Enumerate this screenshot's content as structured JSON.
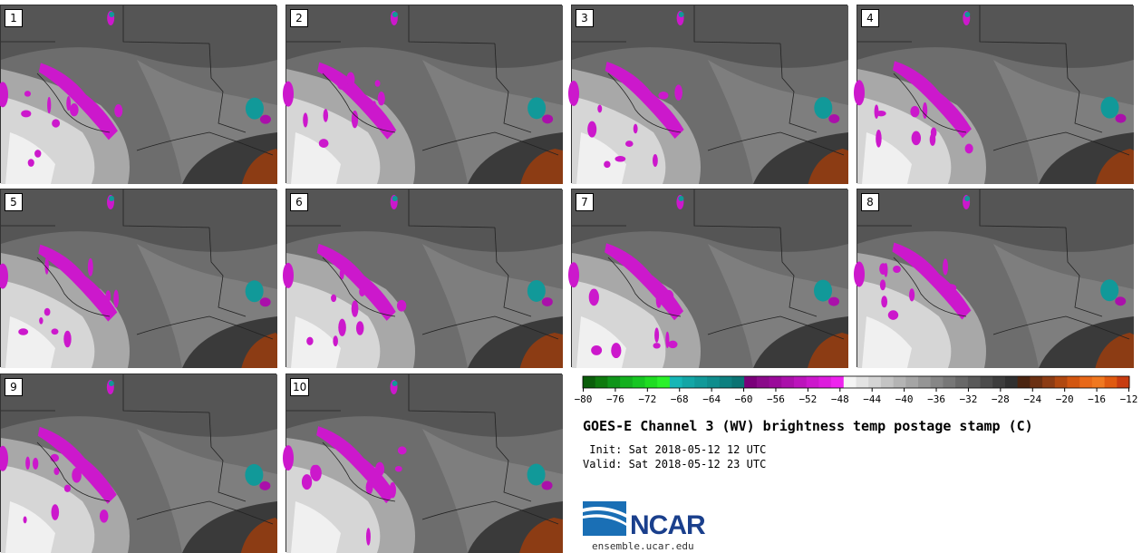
{
  "panels": [
    {
      "label": "1"
    },
    {
      "label": "2"
    },
    {
      "label": "3"
    },
    {
      "label": "4"
    },
    {
      "label": "5"
    },
    {
      "label": "6"
    },
    {
      "label": "7"
    },
    {
      "label": "8"
    },
    {
      "label": "9"
    },
    {
      "label": "10"
    }
  ],
  "colorbar": {
    "ticks": [
      "−80",
      "−76",
      "−72",
      "−68",
      "−64",
      "−60",
      "−56",
      "−52",
      "−48",
      "−44",
      "−40",
      "−36",
      "−32",
      "−28",
      "−24",
      "−20",
      "−16",
      "−12"
    ],
    "colors": [
      "#0b5e0b",
      "#0e7a0e",
      "#10951a",
      "#14b01f",
      "#17c622",
      "#1fdc22",
      "#2af02a",
      "#16b6b6",
      "#13a6a6",
      "#119999",
      "#0f8d8d",
      "#0d8080",
      "#0b7373",
      "#7a007a",
      "#8a0a8a",
      "#9a0a9a",
      "#aa10aa",
      "#bb14bb",
      "#cc18cc",
      "#dd1cdd",
      "#ee22ee",
      "#f4f4f4",
      "#e3e3e3",
      "#d4d4d4",
      "#c4c4c4",
      "#b4b4b4",
      "#a5a5a5",
      "#959595",
      "#868686",
      "#777777",
      "#686868",
      "#5a5a5a",
      "#4b4b4b",
      "#3d3d3d",
      "#303030",
      "#4a2410",
      "#6b3012",
      "#8c3c14",
      "#b04810",
      "#d25610",
      "#e86818",
      "#f07820",
      "#e05a10",
      "#c83c10"
    ]
  },
  "title": "GOES-E Channel 3 (WV) brightness temp postage stamp (C)",
  "init": " Init: Sat 2018-05-12 12 UTC",
  "valid": "Valid: Sat 2018-05-12 23 UTC",
  "logo": {
    "name": "NCAR",
    "url": "ensemble.ucar.edu"
  }
}
